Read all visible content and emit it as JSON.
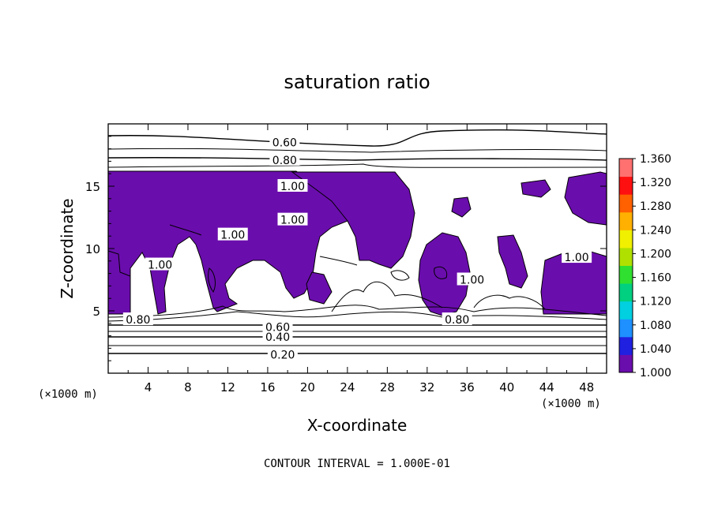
{
  "chart_data": {
    "type": "contour",
    "title": "saturation ratio",
    "xlabel": "X-coordinate",
    "ylabel": "Z-coordinate",
    "x_unit": "(×1000 m)",
    "y_unit": "(×1000 m)",
    "xlim": [
      0,
      50
    ],
    "ylim": [
      0,
      20
    ],
    "x_ticks": [
      4,
      8,
      12,
      16,
      20,
      24,
      28,
      32,
      36,
      40,
      44,
      48
    ],
    "y_ticks": [
      5,
      10,
      15
    ],
    "shaded_region": {
      "threshold": 1.0,
      "color": "#6a0dad"
    },
    "contour_labels": [
      {
        "text": "0.20",
        "x": 17.5,
        "z": 1.5
      },
      {
        "text": "0.40",
        "x": 17.0,
        "z": 2.9
      },
      {
        "text": "0.60",
        "x": 17.0,
        "z": 3.7
      },
      {
        "text": "0.80",
        "x": 3.0,
        "z": 4.3
      },
      {
        "text": "0.80",
        "x": 35.0,
        "z": 4.3
      },
      {
        "text": "0.60",
        "x": 17.7,
        "z": 18.5
      },
      {
        "text": "0.80",
        "x": 17.7,
        "z": 17.1
      },
      {
        "text": "1.00",
        "x": 18.5,
        "z": 12.3
      },
      {
        "text": "1.00",
        "x": 18.5,
        "z": 15.0
      },
      {
        "text": "1.00",
        "x": 12.5,
        "z": 11.1
      },
      {
        "text": "1.00",
        "x": 5.2,
        "z": 8.7
      },
      {
        "text": "1.00",
        "x": 36.5,
        "z": 7.5
      },
      {
        "text": "1.00",
        "x": 47.0,
        "z": 9.3
      }
    ],
    "colorbar": {
      "min": 1.0,
      "max": 1.36,
      "labels": [
        "1.360",
        "1.320",
        "1.280",
        "1.240",
        "1.200",
        "1.160",
        "1.120",
        "1.080",
        "1.040",
        "1.000"
      ],
      "colors": [
        "#6a0dad",
        "#2020e0",
        "#1e90ff",
        "#00d0e0",
        "#00d080",
        "#30e030",
        "#b0e000",
        "#f0f000",
        "#ffb000",
        "#ff6000",
        "#ff1010",
        "#ff7070"
      ]
    },
    "footer": "CONTOUR INTERVAL = 1.000E-01"
  }
}
